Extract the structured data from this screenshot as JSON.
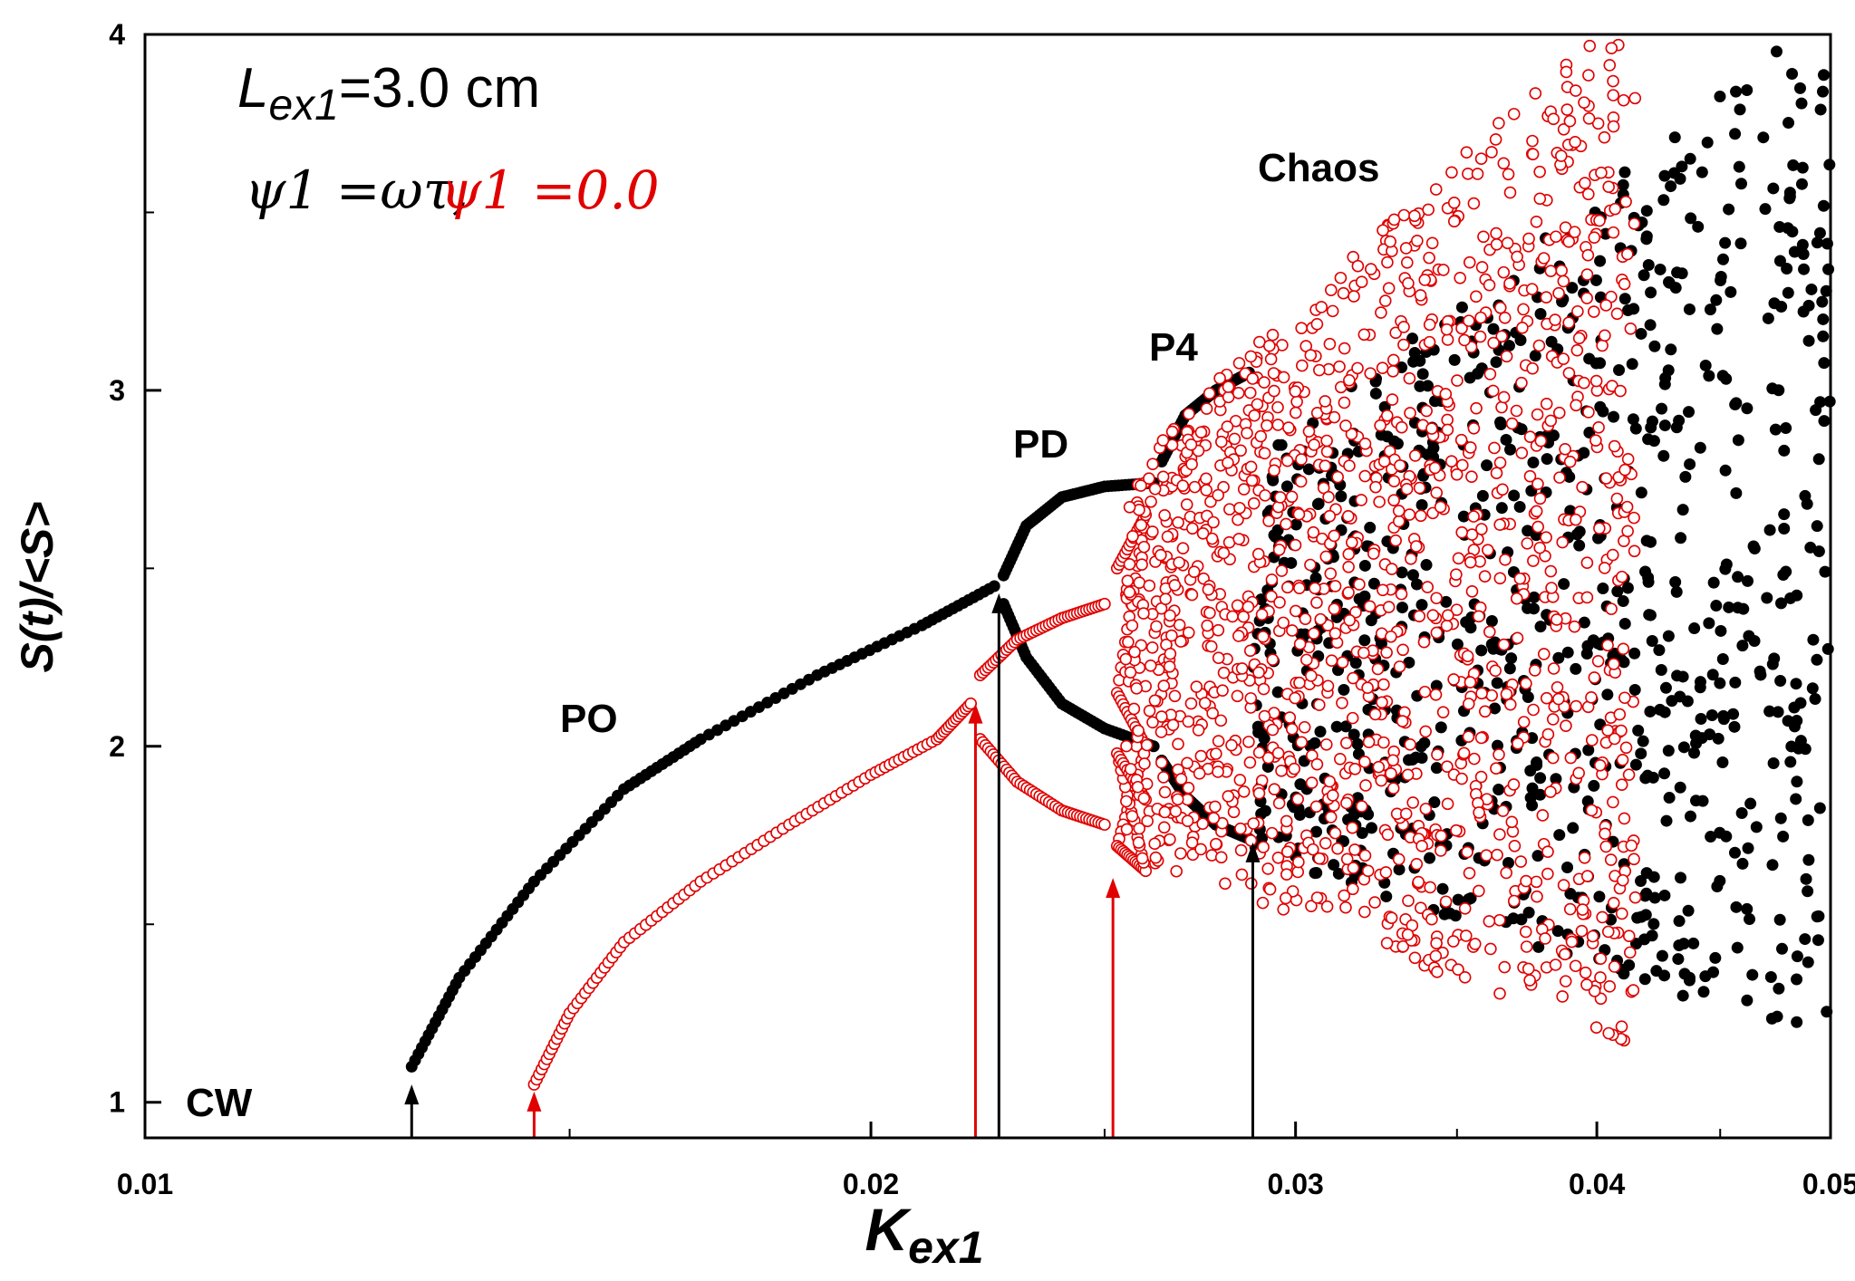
{
  "chart_data": {
    "type": "scatter",
    "title": "",
    "xlabel": "Kex1",
    "xlabel_main": "K",
    "xlabel_sub": "ex1",
    "ylabel": "S(t)/<S>",
    "xscale": "log",
    "xlim": [
      0.01,
      0.05
    ],
    "ylim": [
      0.9,
      4.0
    ],
    "x_ticks": [
      0.01,
      0.02,
      0.03,
      0.04,
      0.05
    ],
    "x_tick_labels": [
      "0.01",
      "0.02",
      "0.03",
      "0.04",
      "0.05"
    ],
    "y_ticks": [
      1,
      2,
      3,
      4
    ],
    "y_tick_labels": [
      "1",
      "2",
      "3",
      "4"
    ],
    "legend": {
      "title_main": "L",
      "title_sub": "ex1",
      "title_value": "=3.0 cm",
      "title": "Lex1=3.0 cm",
      "entry1_label": "ψ1 =ωτ,",
      "entry2_label": "ψ1 =0.0"
    },
    "annotations": [
      "CW",
      "PO",
      "PD",
      "P4",
      "Chaos"
    ],
    "colors": {
      "series1": "#000000",
      "series2": "#e00000"
    },
    "series": [
      {
        "name": "ψ1 =ωτ",
        "marker": "filled-circle",
        "color": "#000000",
        "branches": [
          {
            "description": "P1 branch",
            "points": [
              [
                0.0129,
                1.1
              ],
              [
                0.0135,
                1.35
              ],
              [
                0.0145,
                1.62
              ],
              [
                0.0158,
                1.88
              ],
              [
                0.017,
                2.02
              ],
              [
                0.019,
                2.2
              ],
              [
                0.021,
                2.34
              ],
              [
                0.0225,
                2.45
              ]
            ]
          },
          {
            "description": "PD upper",
            "points": [
              [
                0.0227,
                2.48
              ],
              [
                0.0232,
                2.62
              ],
              [
                0.024,
                2.7
              ],
              [
                0.025,
                2.73
              ],
              [
                0.0262,
                2.74
              ]
            ]
          },
          {
            "description": "PD lower",
            "points": [
              [
                0.0227,
                2.4
              ],
              [
                0.0232,
                2.25
              ],
              [
                0.024,
                2.12
              ],
              [
                0.025,
                2.05
              ],
              [
                0.0262,
                2.0
              ]
            ]
          },
          {
            "description": "P4 upper",
            "points": [
              [
                0.0264,
                2.8
              ],
              [
                0.027,
                2.93
              ],
              [
                0.0278,
                3.0
              ],
              [
                0.0287,
                3.05
              ]
            ]
          },
          {
            "description": "P4 lower",
            "points": [
              [
                0.0264,
                1.96
              ],
              [
                0.027,
                1.86
              ],
              [
                0.0278,
                1.78
              ],
              [
                0.0287,
                1.74
              ]
            ]
          }
        ],
        "chaos_region": {
          "x_range": [
            0.0288,
            0.0505
          ],
          "y_range": [
            1.1,
            4.0
          ]
        }
      },
      {
        "name": "ψ1 =0.0",
        "marker": "open-circle",
        "color": "#e00000",
        "branches": [
          {
            "description": "P1 branch",
            "points": [
              [
                0.0145,
                1.05
              ],
              [
                0.015,
                1.25
              ],
              [
                0.0158,
                1.45
              ],
              [
                0.017,
                1.62
              ],
              [
                0.0185,
                1.78
              ],
              [
                0.02,
                1.92
              ],
              [
                0.0213,
                2.02
              ],
              [
                0.022,
                2.12
              ]
            ]
          },
          {
            "description": "PD upper",
            "points": [
              [
                0.0222,
                2.2
              ],
              [
                0.023,
                2.3
              ],
              [
                0.024,
                2.36
              ],
              [
                0.025,
                2.4
              ]
            ]
          },
          {
            "description": "PD lower",
            "points": [
              [
                0.0222,
                2.02
              ],
              [
                0.023,
                1.9
              ],
              [
                0.024,
                1.82
              ],
              [
                0.025,
                1.78
              ]
            ]
          },
          {
            "description": "P4",
            "points": [
              [
                0.0253,
                2.5
              ],
              [
                0.026,
                2.65
              ],
              [
                0.0253,
                2.15
              ],
              [
                0.026,
                2.0
              ],
              [
                0.0253,
                1.72
              ],
              [
                0.026,
                1.65
              ],
              [
                0.0253,
                1.98
              ],
              [
                0.026,
                1.85
              ]
            ]
          }
        ],
        "chaos_region": {
          "x_range": [
            0.0255,
            0.0415
          ],
          "y_range": [
            1.1,
            4.0
          ]
        }
      }
    ],
    "arrows": [
      {
        "color": "#000000",
        "x": 0.0129,
        "y_top": 1.05
      },
      {
        "color": "#e00000",
        "x": 0.0145,
        "y_top": 1.03
      },
      {
        "color": "#e00000",
        "x": 0.0221,
        "y_top": 2.12
      },
      {
        "color": "#000000",
        "x": 0.0226,
        "y_top": 2.43
      },
      {
        "color": "#e00000",
        "x": 0.0252,
        "y_top": 1.63
      },
      {
        "color": "#000000",
        "x": 0.0288,
        "y_top": 1.73
      }
    ]
  }
}
